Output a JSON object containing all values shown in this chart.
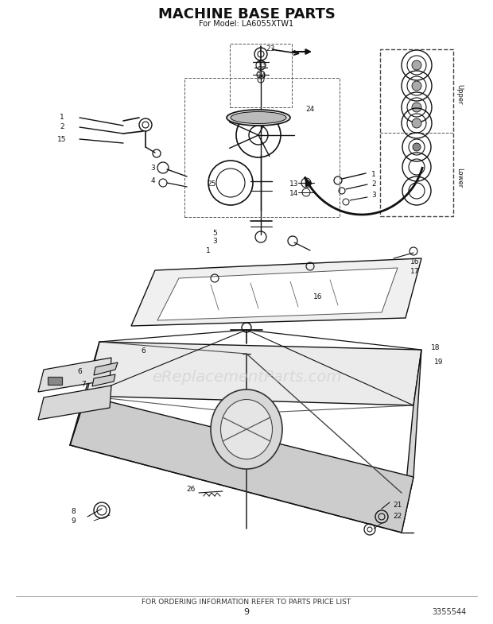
{
  "title": "MACHINE BASE PARTS",
  "subtitle": "For Model: LA6055XTW1",
  "footer_text": "FOR ORDERING INFORMATION REFER TO PARTS PRICE LIST",
  "page_number": "9",
  "part_number": "3355544",
  "bg_color": "#ffffff",
  "title_color": "#111111",
  "text_color": "#111111",
  "watermark_text": "eReplacementParts.com",
  "fig_width": 6.2,
  "fig_height": 7.85,
  "dpi": 100
}
